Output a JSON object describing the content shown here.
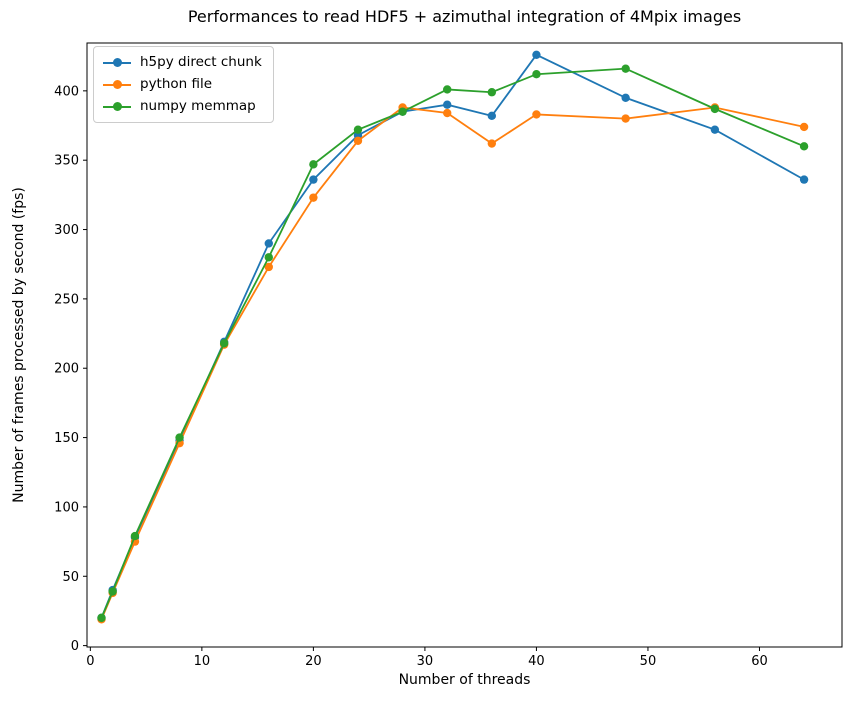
{
  "chart_data": {
    "type": "line",
    "title": "Performances to read HDF5 + azimuthal integration of 4Mpix images",
    "xlabel": "Number of threads",
    "ylabel": "Number of frames processed by second (fps)",
    "x": [
      1,
      2,
      4,
      8,
      12,
      16,
      20,
      24,
      28,
      32,
      36,
      40,
      48,
      56,
      64
    ],
    "series": [
      {
        "name": "h5py direct chunk",
        "color": "#1f77b4",
        "values": [
          20,
          40,
          78,
          148,
          219,
          290,
          336,
          368,
          385,
          390,
          382,
          426,
          395,
          372,
          336
        ]
      },
      {
        "name": "python file",
        "color": "#ff7f0e",
        "values": [
          19,
          38,
          75,
          146,
          217,
          273,
          323,
          364,
          388,
          384,
          362,
          383,
          380,
          388,
          374
        ]
      },
      {
        "name": "numpy memmap",
        "color": "#2ca02c",
        "values": [
          20,
          39,
          79,
          150,
          218,
          280,
          347,
          372,
          385,
          401,
          399,
          412,
          416,
          387,
          360
        ]
      }
    ],
    "xticks": [
      0,
      10,
      20,
      30,
      40,
      50,
      60
    ],
    "yticks": [
      0,
      50,
      100,
      150,
      200,
      250,
      300,
      350,
      400
    ],
    "xlim": [
      -0.3,
      67.4
    ],
    "ylim": [
      -1,
      434.5
    ],
    "grid": false,
    "legend_position": "upper left",
    "marker": "circle",
    "axis_color": "#000000"
  }
}
